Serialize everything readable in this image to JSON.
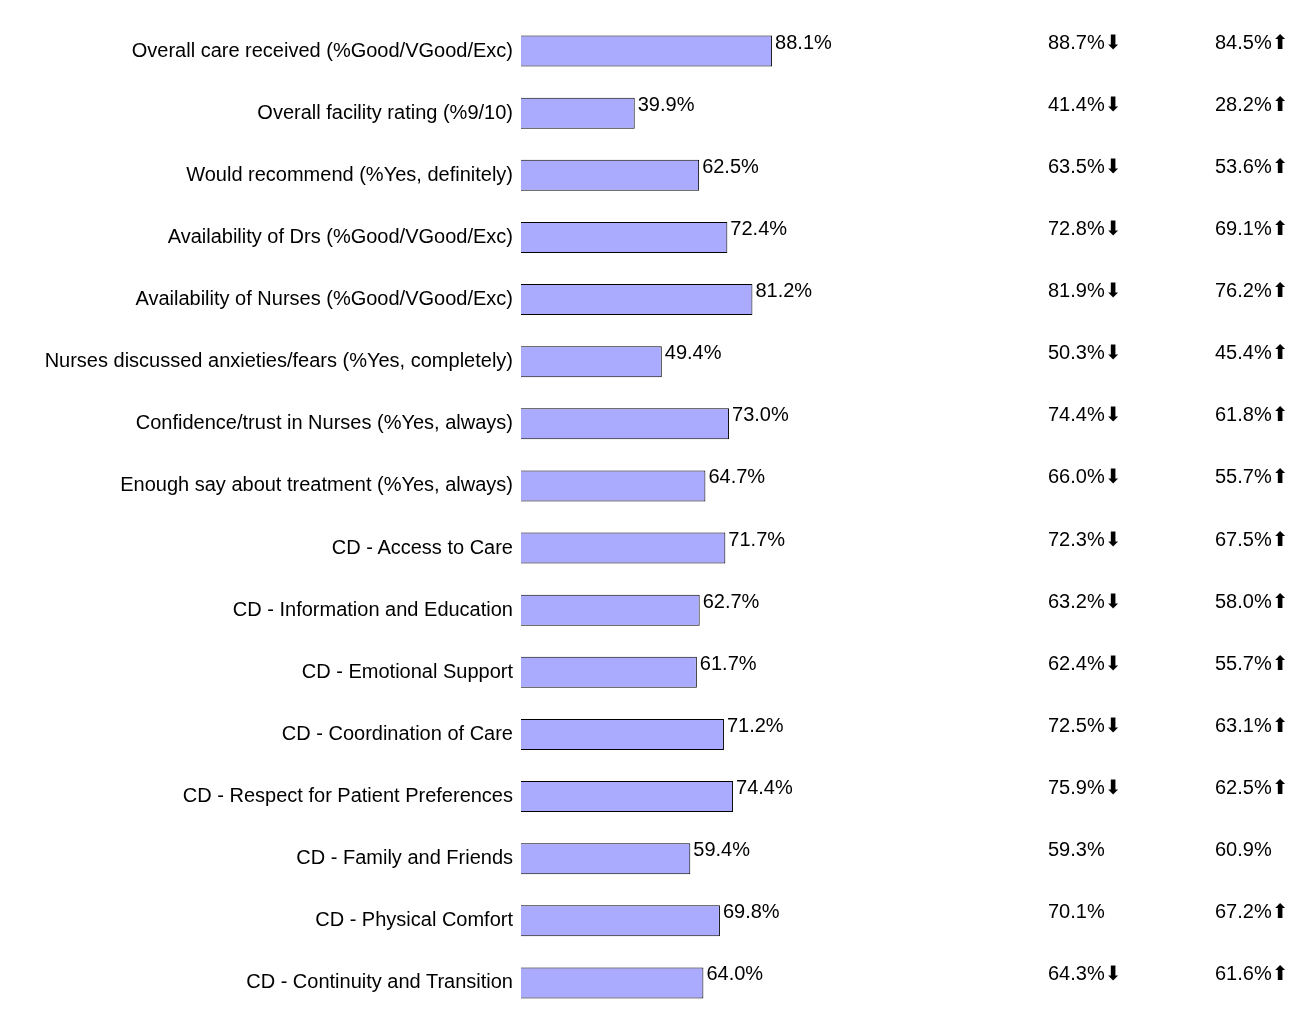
{
  "chart_data": {
    "type": "bar",
    "orientation": "horizontal",
    "categories": [
      "Overall care received (%Good/VGood/Exc)",
      "Overall facility rating (%9/10)",
      "Would recommend (%Yes, definitely)",
      "Availability of Drs (%Good/VGood/Exc)",
      "Availability of Nurses (%Good/VGood/Exc)",
      "Nurses discussed anxieties/fears (%Yes, completely)",
      "Confidence/trust in Nurses (%Yes, always)",
      "Enough say about treatment (%Yes, always)",
      "CD - Access to Care",
      "CD - Information and Education",
      "CD - Emotional Support",
      "CD - Coordination of Care",
      "CD - Respect for Patient Preferences",
      "CD - Family and Friends",
      "CD - Physical Comfort",
      "CD - Continuity and Transition"
    ],
    "series": [
      {
        "color": "#aaaaff",
        "values": [
          88.1,
          39.9,
          62.5,
          72.4,
          81.2,
          49.4,
          73.0,
          64.7,
          71.7,
          62.7,
          61.7,
          71.2,
          74.4,
          59.4,
          69.8,
          64.0
        ],
        "value_labels": [
          "88.1%",
          "39.9%",
          "62.5%",
          "72.4%",
          "81.2%",
          "49.4%",
          "73.0%",
          "64.7%",
          "71.7%",
          "62.7%",
          "61.7%",
          "71.2%",
          "74.4%",
          "59.4%",
          "69.8%",
          "64.0%"
        ]
      }
    ],
    "legend": false,
    "tick_labels": "y",
    "annotations": [
      "88.7%⬇",
      "84.5%⬆",
      "41.4%⬇",
      "28.2%⬆",
      "63.5%⬇",
      "53.6%⬆",
      "72.8%⬇",
      "69.1%⬆",
      "81.9%⬇",
      "76.2%⬆",
      "50.3%⬇",
      "45.4%⬆",
      "74.4%⬇",
      "61.8%⬆",
      "66.0%⬇",
      "55.7%⬆",
      "72.3%⬇",
      "67.5%⬆",
      "63.2%⬇",
      "58.0%⬆",
      "62.4%⬇",
      "55.7%⬆",
      "72.5%⬇",
      "63.1%⬆",
      "75.9%⬇",
      "62.5%⬆",
      "59.3%",
      "60.9%",
      "70.1%",
      "67.2%⬆",
      "64.3%⬇",
      "61.6%⬆"
    ]
  }
}
